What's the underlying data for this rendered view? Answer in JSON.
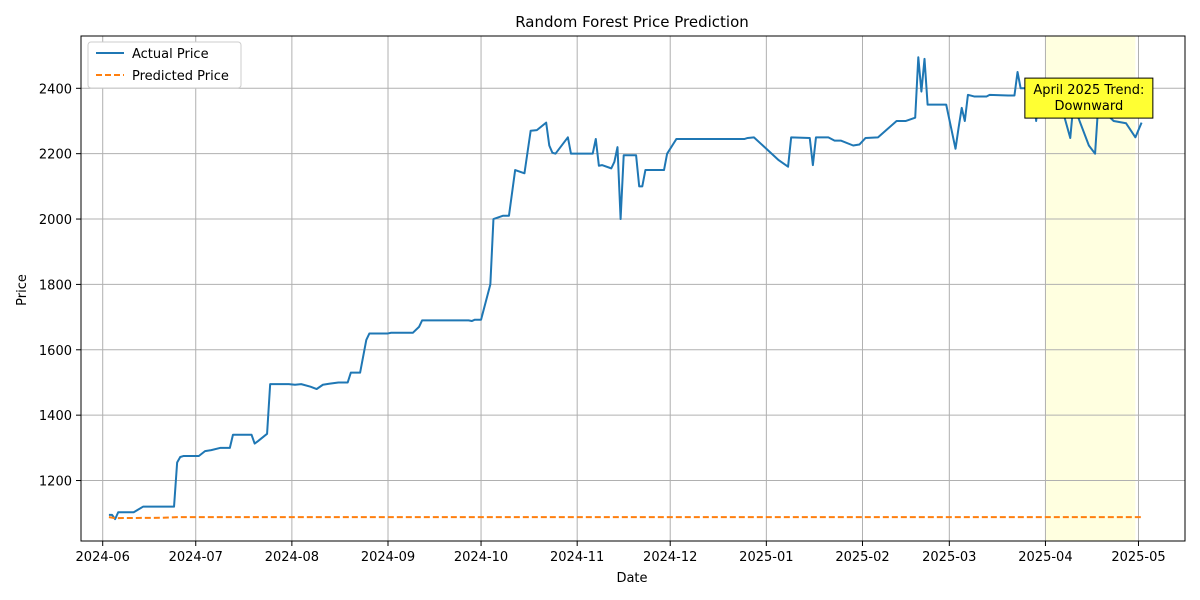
{
  "chart_data": {
    "type": "line",
    "title": "Random Forest Price Prediction",
    "xlabel": "Date",
    "ylabel": "Price",
    "x_ticks": [
      "2024-06",
      "2024-07",
      "2024-08",
      "2024-09",
      "2024-10",
      "2024-11",
      "2024-12",
      "2025-01",
      "2025-02",
      "2025-03",
      "2025-04",
      "2025-05"
    ],
    "y_ticks": [
      1200,
      1400,
      1600,
      1800,
      2000,
      2200,
      2400
    ],
    "xlim": [
      "2024-05-25",
      "2025-05-16"
    ],
    "ylim": [
      1015,
      2560
    ],
    "grid": true,
    "legend_position": "top-left",
    "highlight": {
      "start": "2025-04-01",
      "end": "2025-04-30",
      "color": "#ffffe0"
    },
    "annotation": {
      "text": [
        "April 2025 Trend:",
        "Downward"
      ],
      "anchor_date": "2025-04-15",
      "anchor_value": 2370,
      "background": "#ffff33"
    },
    "colors": {
      "actual": "#1f77b4",
      "predicted": "#ff7f0e",
      "grid": "#b0b0b0"
    },
    "series": [
      {
        "name": "Actual Price",
        "style": "solid",
        "points": [
          [
            "2024-06-03",
            1095
          ],
          [
            "2024-06-04",
            1095
          ],
          [
            "2024-06-05",
            1082
          ],
          [
            "2024-06-06",
            1103
          ],
          [
            "2024-06-10",
            1103
          ],
          [
            "2024-06-11",
            1103
          ],
          [
            "2024-06-14",
            1120
          ],
          [
            "2024-06-24",
            1120
          ],
          [
            "2024-06-25",
            1255
          ],
          [
            "2024-06-26",
            1272
          ],
          [
            "2024-06-27",
            1275
          ],
          [
            "2024-07-01",
            1275
          ],
          [
            "2024-07-02",
            1275
          ],
          [
            "2024-07-04",
            1290
          ],
          [
            "2024-07-06",
            1293
          ],
          [
            "2024-07-09",
            1300
          ],
          [
            "2024-07-12",
            1300
          ],
          [
            "2024-07-13",
            1340
          ],
          [
            "2024-07-19",
            1340
          ],
          [
            "2024-07-20",
            1313
          ],
          [
            "2024-07-21",
            1320
          ],
          [
            "2024-07-24",
            1343
          ],
          [
            "2024-07-25",
            1495
          ],
          [
            "2024-07-31",
            1495
          ],
          [
            "2024-08-02",
            1493
          ],
          [
            "2024-08-04",
            1495
          ],
          [
            "2024-08-07",
            1487
          ],
          [
            "2024-08-09",
            1480
          ],
          [
            "2024-08-11",
            1493
          ],
          [
            "2024-08-13",
            1496
          ],
          [
            "2024-08-16",
            1500
          ],
          [
            "2024-08-19",
            1500
          ],
          [
            "2024-08-20",
            1530
          ],
          [
            "2024-08-23",
            1530
          ],
          [
            "2024-08-25",
            1630
          ],
          [
            "2024-08-26",
            1650
          ],
          [
            "2024-09-01",
            1650
          ],
          [
            "2024-09-02",
            1652
          ],
          [
            "2024-09-09",
            1652
          ],
          [
            "2024-09-11",
            1670
          ],
          [
            "2024-09-12",
            1690
          ],
          [
            "2024-09-27",
            1690
          ],
          [
            "2024-09-28",
            1688
          ],
          [
            "2024-09-29",
            1692
          ],
          [
            "2024-10-01",
            1692
          ],
          [
            "2024-10-04",
            1800
          ],
          [
            "2024-10-05",
            2000
          ],
          [
            "2024-10-08",
            2010
          ],
          [
            "2024-10-10",
            2010
          ],
          [
            "2024-10-12",
            2150
          ],
          [
            "2024-10-15",
            2140
          ],
          [
            "2024-10-17",
            2270
          ],
          [
            "2024-10-19",
            2272
          ],
          [
            "2024-10-22",
            2295
          ],
          [
            "2024-10-23",
            2225
          ],
          [
            "2024-10-24",
            2203
          ],
          [
            "2024-10-25",
            2200
          ],
          [
            "2024-10-29",
            2250
          ],
          [
            "2024-10-30",
            2200
          ],
          [
            "2024-11-06",
            2200
          ],
          [
            "2024-11-07",
            2245
          ],
          [
            "2024-11-08",
            2163
          ],
          [
            "2024-11-09",
            2165
          ],
          [
            "2024-11-12",
            2155
          ],
          [
            "2024-11-13",
            2175
          ],
          [
            "2024-11-14",
            2220
          ],
          [
            "2024-11-15",
            2000
          ],
          [
            "2024-11-16",
            2195
          ],
          [
            "2024-11-20",
            2195
          ],
          [
            "2024-11-21",
            2100
          ],
          [
            "2024-11-22",
            2100
          ],
          [
            "2024-11-23",
            2150
          ],
          [
            "2024-11-29",
            2150
          ],
          [
            "2024-11-30",
            2200
          ],
          [
            "2024-12-02",
            2230
          ],
          [
            "2024-12-03",
            2245
          ],
          [
            "2024-12-25",
            2245
          ],
          [
            "2024-12-26",
            2248
          ],
          [
            "2024-12-28",
            2250
          ],
          [
            "2025-01-05",
            2180
          ],
          [
            "2025-01-08",
            2160
          ],
          [
            "2025-01-09",
            2250
          ],
          [
            "2025-01-15",
            2248
          ],
          [
            "2025-01-16",
            2165
          ],
          [
            "2025-01-17",
            2250
          ],
          [
            "2025-01-21",
            2250
          ],
          [
            "2025-01-23",
            2240
          ],
          [
            "2025-01-25",
            2240
          ],
          [
            "2025-01-29",
            2225
          ],
          [
            "2025-01-31",
            2228
          ],
          [
            "2025-02-02",
            2248
          ],
          [
            "2025-02-06",
            2250
          ],
          [
            "2025-02-12",
            2300
          ],
          [
            "2025-02-15",
            2300
          ],
          [
            "2025-02-18",
            2310
          ],
          [
            "2025-02-19",
            2495
          ],
          [
            "2025-02-20",
            2390
          ],
          [
            "2025-02-21",
            2490
          ],
          [
            "2025-02-22",
            2350
          ],
          [
            "2025-02-28",
            2350
          ],
          [
            "2025-03-03",
            2215
          ],
          [
            "2025-03-04",
            2280
          ],
          [
            "2025-03-05",
            2340
          ],
          [
            "2025-03-06",
            2300
          ],
          [
            "2025-03-07",
            2380
          ],
          [
            "2025-03-09",
            2375
          ],
          [
            "2025-03-13",
            2375
          ],
          [
            "2025-03-14",
            2380
          ],
          [
            "2025-03-20",
            2378
          ],
          [
            "2025-03-22",
            2378
          ],
          [
            "2025-03-23",
            2450
          ],
          [
            "2025-03-24",
            2400
          ],
          [
            "2025-03-28",
            2400
          ],
          [
            "2025-03-29",
            2300
          ],
          [
            "2025-03-30",
            2400
          ],
          [
            "2025-04-01",
            2390
          ],
          [
            "2025-04-03",
            2340
          ],
          [
            "2025-04-06",
            2350
          ],
          [
            "2025-04-09",
            2248
          ],
          [
            "2025-04-10",
            2350
          ],
          [
            "2025-04-15",
            2225
          ],
          [
            "2025-04-17",
            2200
          ],
          [
            "2025-04-18",
            2345
          ],
          [
            "2025-04-23",
            2300
          ],
          [
            "2025-04-27",
            2293
          ],
          [
            "2025-04-30",
            2250
          ],
          [
            "2025-05-02",
            2295
          ]
        ]
      },
      {
        "name": "Predicted Price",
        "style": "dashed",
        "points": [
          [
            "2024-06-03",
            1088
          ],
          [
            "2024-06-05",
            1085
          ],
          [
            "2024-06-20",
            1086
          ],
          [
            "2024-06-25",
            1088
          ],
          [
            "2024-07-15",
            1088
          ],
          [
            "2025-05-02",
            1088
          ]
        ]
      }
    ]
  }
}
